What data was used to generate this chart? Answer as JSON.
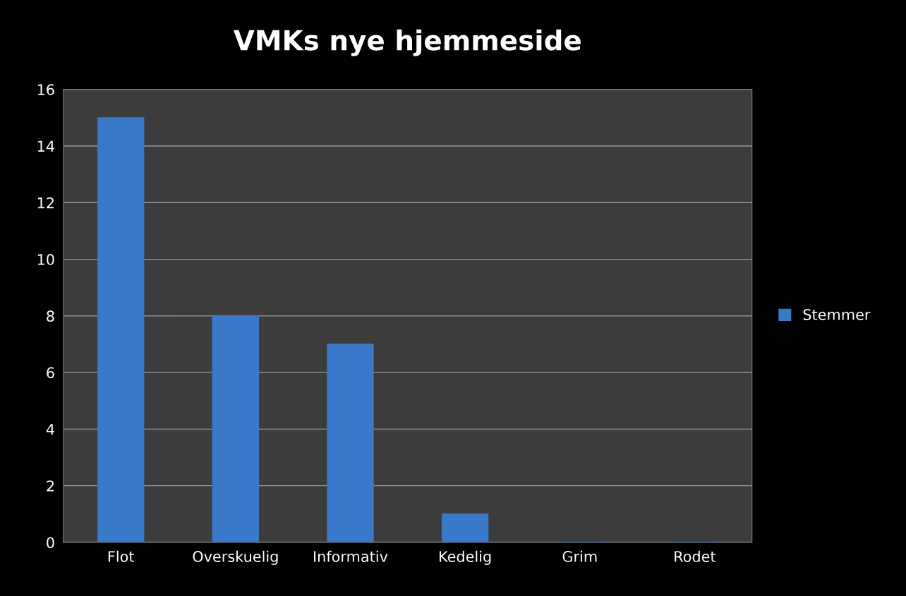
{
  "chart_data": {
    "type": "bar",
    "title": "VMKs nye hjemmeside",
    "categories": [
      "Flot",
      "Overskuelig",
      "Informativ",
      "Kedelig",
      "Grim",
      "Rodet"
    ],
    "series": [
      {
        "name": "Stemmer",
        "color": "#3a78c9",
        "values": [
          15,
          8,
          7,
          1,
          0,
          0
        ]
      }
    ],
    "ylim": [
      0,
      16
    ],
    "yticks": [
      0,
      2,
      4,
      6,
      8,
      10,
      12,
      14,
      16
    ],
    "grid": "y",
    "legend": "right"
  }
}
